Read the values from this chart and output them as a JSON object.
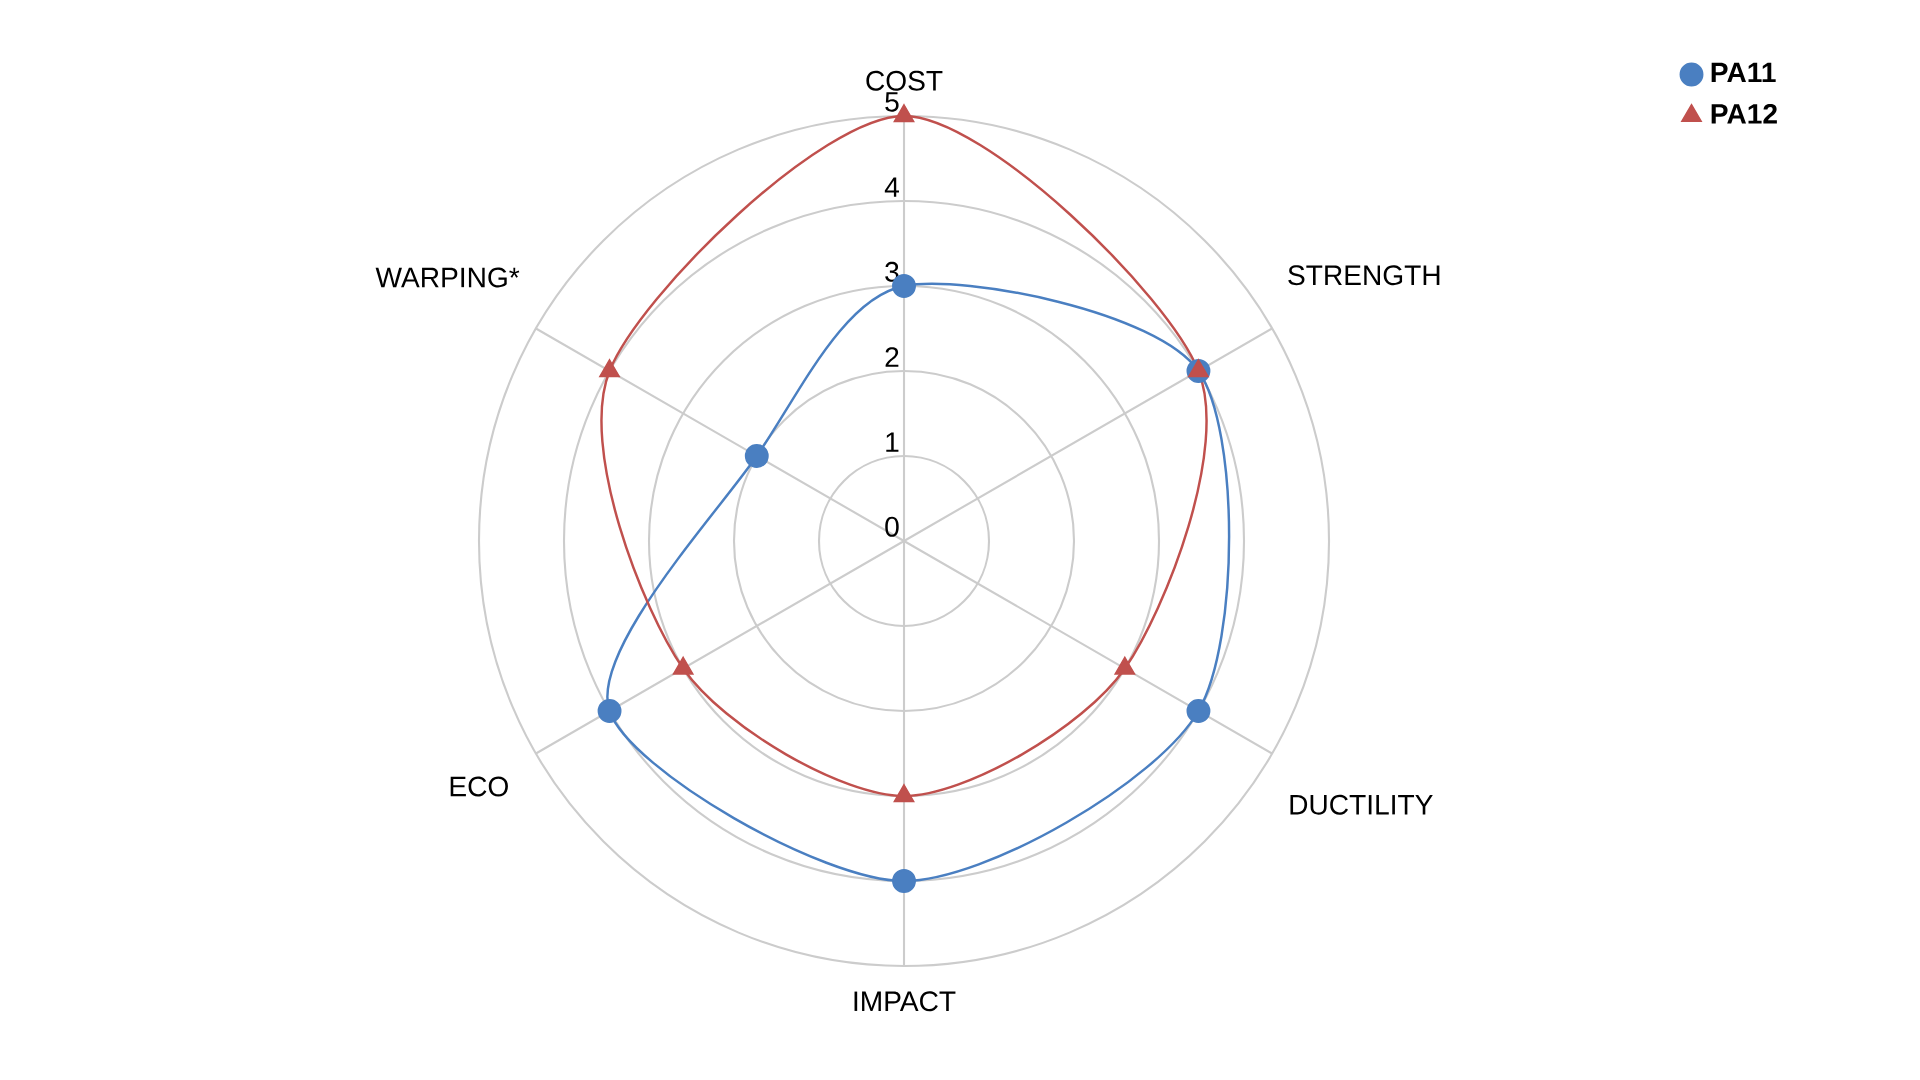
{
  "chart_data": {
    "type": "radar",
    "categories": [
      "COST",
      "STRENGTH",
      "DUCTILITY",
      "IMPACT",
      "ECO",
      "WARPING*"
    ],
    "series": [
      {
        "name": "PA11",
        "color": "#4a7fc1",
        "marker": "circle",
        "values": [
          3,
          4,
          4,
          4,
          4,
          2
        ]
      },
      {
        "name": "PA12",
        "color": "#c0504d",
        "marker": "triangle",
        "values": [
          5,
          4,
          3,
          3,
          3,
          4
        ]
      }
    ],
    "ylim": [
      0,
      5
    ],
    "yticks": [
      0,
      1,
      2,
      3,
      4,
      5
    ],
    "grid": true,
    "legend": "top right",
    "line_style": "solid"
  }
}
